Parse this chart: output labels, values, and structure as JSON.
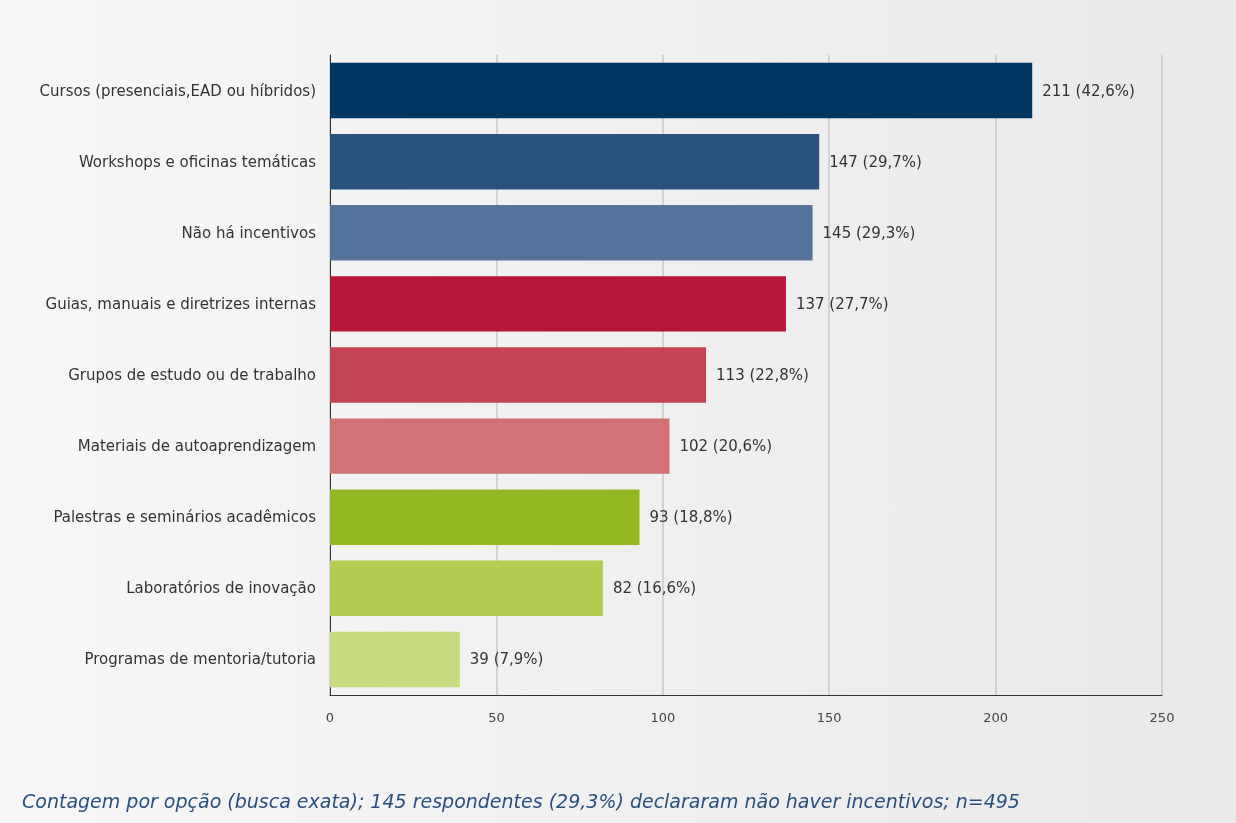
{
  "chart_data": {
    "type": "bar",
    "orientation": "horizontal",
    "categories": [
      "Cursos (presenciais,EAD ou híbridos)",
      "Workshops e oficinas temáticas",
      "Não há incentivos",
      "Guias, manuais e diretrizes internas",
      "Grupos de estudo ou de trabalho",
      "Materiais de autoaprendizagem",
      "Palestras e seminários acadêmicos",
      "Laboratórios de inovação",
      "Programas de mentoria/tutoria"
    ],
    "values": [
      211,
      147,
      145,
      137,
      113,
      102,
      93,
      82,
      39
    ],
    "value_labels": [
      "211 (42,6%)",
      "147 (29,7%)",
      "145 (29,3%)",
      "137 (27,7%)",
      "113 (22,8%)",
      "102 (20,6%)",
      "93 (18,8%)",
      "82 (16,6%)",
      "39 (7,9%)"
    ],
    "colors": [
      "#003660",
      "#2a527c",
      "#55729a",
      "#b41538",
      "#c24452",
      "#d17274",
      "#93b823",
      "#b3cc52",
      "#c7db80"
    ],
    "xlim": [
      0,
      250
    ],
    "xticks": [
      0,
      50,
      100,
      150,
      200,
      250
    ],
    "grid": "x",
    "annotations": [
      "Contagem por opção (busca exata); 145 respondentes (29,3%) declararam não haver incentivos; n=495"
    ]
  }
}
